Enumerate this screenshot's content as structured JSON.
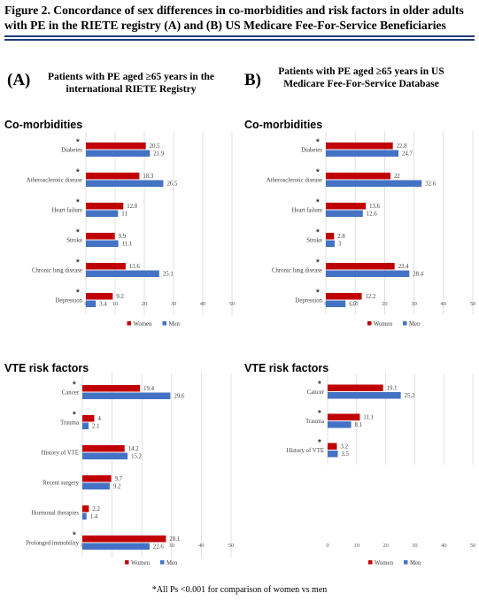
{
  "figure": {
    "title": "Figure 2. Concordance of sex differences in co-morbidities and risk factors in older adults with PE in the RIETE registry (A) and (B) US Medicare Fee-For-Service Beneficiaries",
    "footnote": "*All Ps <0.001 for comparison of women vs men"
  },
  "panels": {
    "a": {
      "letter": "(A)",
      "subtitle": "Patients with PE aged ≥65  years in the international RIETE Registry"
    },
    "b": {
      "letter": "B)",
      "subtitle": "Patients with PE aged ≥65  years in US Medicare Fee-For-Service Database"
    }
  },
  "sections": {
    "comorbidities": "Co-morbidities",
    "vte": "VTE risk factors"
  },
  "colors": {
    "women": "#c00000",
    "men": "#4472c4",
    "grid": "#d9d9d9",
    "rule": "#1f3a7a"
  },
  "chart_data": [
    {
      "id": "a_comorb",
      "type": "bar",
      "orientation": "horizontal",
      "categories": [
        "Diabetes",
        "Atherosclerotic disease",
        "Heart failure",
        "Stroke",
        "Chronic lung disease",
        "Depression"
      ],
      "significant": [
        true,
        true,
        true,
        true,
        true,
        true
      ],
      "series": [
        {
          "name": "Women",
          "values": [
            20.5,
            18.3,
            12.8,
            9.9,
            13.6,
            9.2
          ]
        },
        {
          "name": "Men",
          "values": [
            21.9,
            26.5,
            11,
            11.1,
            25.1,
            3.4
          ]
        }
      ],
      "xlim": [
        0,
        50
      ],
      "xticks": [
        0,
        10,
        20,
        30,
        40,
        50
      ],
      "grid": true,
      "legend": "bottom"
    },
    {
      "id": "b_comorb",
      "type": "bar",
      "orientation": "horizontal",
      "categories": [
        "Diabetes",
        "Atherosclerotic disease",
        "Heart failure",
        "Stroke",
        "Chronic lung disease",
        "Depression"
      ],
      "significant": [
        true,
        true,
        true,
        true,
        true,
        true
      ],
      "series": [
        {
          "name": "Women",
          "values": [
            22.8,
            22,
            13.6,
            2.8,
            23.4,
            12.2
          ]
        },
        {
          "name": "Men",
          "values": [
            24.7,
            32.6,
            12.6,
            3,
            28.4,
            6.7
          ]
        }
      ],
      "xlim": [
        0,
        50
      ],
      "xticks": [
        0,
        10,
        20,
        30,
        40,
        50
      ],
      "grid": true,
      "legend": "bottom"
    },
    {
      "id": "a_vte",
      "type": "bar",
      "orientation": "horizontal",
      "categories": [
        "Cancer",
        "Trauma",
        "History of VTE",
        "Recent surgery",
        "Hormonal therapies",
        "Prolonged immobility"
      ],
      "significant": [
        true,
        true,
        false,
        false,
        false,
        true
      ],
      "series": [
        {
          "name": "Women",
          "values": [
            19.4,
            4,
            14.2,
            9.7,
            2.2,
            28.1
          ]
        },
        {
          "name": "Men",
          "values": [
            29.6,
            2.1,
            15.2,
            9.2,
            1.4,
            22.6
          ]
        }
      ],
      "xlim": [
        0,
        50
      ],
      "xticks": [
        0,
        10,
        20,
        30,
        40,
        50
      ],
      "grid": true,
      "legend": "bottom"
    },
    {
      "id": "b_vte",
      "type": "bar",
      "orientation": "horizontal",
      "categories": [
        "Cancer",
        "Trauma",
        "History of VTE"
      ],
      "significant": [
        true,
        true,
        true
      ],
      "series": [
        {
          "name": "Women",
          "values": [
            19.1,
            11.1,
            3.2
          ]
        },
        {
          "name": "Men",
          "values": [
            25.2,
            8.1,
            3.5
          ]
        }
      ],
      "xlim": [
        0,
        50
      ],
      "xticks": [
        0,
        10,
        20,
        30,
        40,
        50
      ],
      "grid": true,
      "legend": "bottom"
    }
  ]
}
